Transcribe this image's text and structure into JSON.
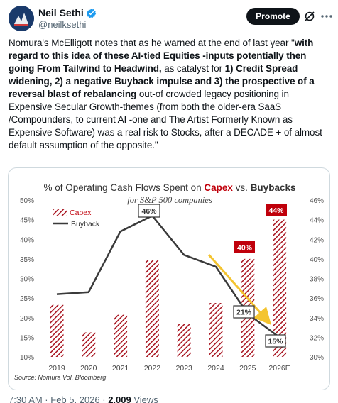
{
  "author": {
    "name": "Neil Sethi",
    "handle": "@neilksethi"
  },
  "actions": {
    "promote_label": "Promote"
  },
  "tweet": {
    "segments": [
      {
        "text": "Nomura's McElligott notes that as he warned at the end of last year \"",
        "bold": false
      },
      {
        "text": "with regard to this idea of these AI-tied Equities -inputs potentially then going From Tailwind to Headwind,",
        "bold": true
      },
      {
        "text": " as catalyst for ",
        "bold": false
      },
      {
        "text": "1) Credit Spread widening, 2) a negative Buyback impulse and 3) the prospective of a reversal blast of rebalancing",
        "bold": true
      },
      {
        "text": " out-of crowded legacy positioning in Expensive Secular Growth-themes (from both the older-era SaaS /Compounders, to current AI -one and The Artist Formerly Known as Expensive Software) was a real risk to Stocks, after a DECADE + of almost default assumption of the opposite.\"",
        "bold": false
      }
    ]
  },
  "chart": {
    "title_prefix": "% of Operating Cash Flows Spent on ",
    "title_capex": "Capex",
    "title_vs": " vs. ",
    "title_buybacks": "Buybacks",
    "subtitle": "for S&P 500 companies",
    "source": "Source: Nomura Vol, Bloomberg",
    "capex_color": "#c0000b",
    "line_color": "#3a3a3a",
    "arrow_color": "#f4c430",
    "callouts": {
      "buyback_2022": "46%",
      "capex_2025": "40%",
      "capex_2026": "44%",
      "buyback_2025": "21%",
      "buyback_2026": "15%"
    }
  },
  "chart_data": {
    "type": "bar",
    "categories": [
      "2019",
      "2020",
      "2021",
      "2022",
      "2023",
      "2024",
      "2025",
      "2026E"
    ],
    "series": [
      {
        "name": "Capex",
        "type": "bar",
        "axis": "right",
        "values": [
          35.3,
          32.5,
          34.3,
          39.9,
          33.4,
          35.5,
          40,
          44
        ]
      },
      {
        "name": "Buyback",
        "type": "line",
        "axis": "left",
        "values": [
          26,
          26.5,
          42,
          46,
          36,
          33,
          21,
          15
        ]
      }
    ],
    "left_axis": {
      "ticks": [
        "10%",
        "15%",
        "20%",
        "25%",
        "30%",
        "35%",
        "40%",
        "45%",
        "50%"
      ],
      "range": [
        10,
        50
      ]
    },
    "right_axis": {
      "ticks": [
        "30%",
        "32%",
        "34%",
        "36%",
        "38%",
        "40%",
        "42%",
        "44%",
        "46%"
      ],
      "range": [
        30,
        46
      ]
    },
    "legend_position": "top-left",
    "grid": false
  },
  "footer": {
    "time": "7:30 AM · Feb 5, 2026 · ",
    "views_count": "2,009",
    "views_label": " Views"
  }
}
